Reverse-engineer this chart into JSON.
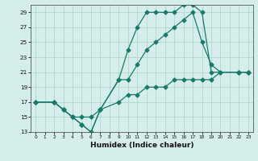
{
  "xlabel": "Humidex (Indice chaleur)",
  "background_color": "#d5eeeb",
  "grid_color": "#b0d8cc",
  "line_color": "#1a7a6a",
  "xlim": [
    -0.5,
    23.5
  ],
  "ylim": [
    13,
    30
  ],
  "yticks": [
    13,
    15,
    17,
    19,
    21,
    23,
    25,
    27,
    29
  ],
  "xticks": [
    0,
    1,
    2,
    3,
    4,
    5,
    6,
    7,
    8,
    9,
    10,
    11,
    12,
    13,
    14,
    15,
    16,
    17,
    18,
    19,
    20,
    21,
    22,
    23
  ],
  "line1_x": [
    0,
    2,
    3,
    4,
    5,
    6,
    7,
    9,
    10,
    11,
    12,
    13,
    14,
    15,
    16,
    17,
    18,
    19,
    22,
    23
  ],
  "line1_y": [
    17,
    17,
    16,
    15,
    14,
    13,
    16,
    20,
    24,
    27,
    29,
    29,
    29,
    29,
    30,
    30,
    29,
    21,
    21,
    21
  ],
  "line2_x": [
    0,
    2,
    3,
    4,
    5,
    6,
    7,
    9,
    10,
    11,
    12,
    13,
    14,
    15,
    16,
    17,
    18,
    19,
    20,
    22,
    23
  ],
  "line2_y": [
    17,
    17,
    16,
    15,
    14,
    13,
    16,
    20,
    20,
    22,
    24,
    25,
    26,
    27,
    28,
    29,
    25,
    22,
    21,
    21,
    21
  ],
  "line3_x": [
    0,
    2,
    3,
    4,
    5,
    6,
    7,
    9,
    10,
    11,
    12,
    13,
    14,
    15,
    16,
    17,
    18,
    19,
    20,
    22,
    23
  ],
  "line3_y": [
    17,
    17,
    16,
    15,
    15,
    15,
    16,
    17,
    18,
    18,
    19,
    19,
    19,
    20,
    20,
    20,
    20,
    20,
    21,
    21,
    21
  ]
}
